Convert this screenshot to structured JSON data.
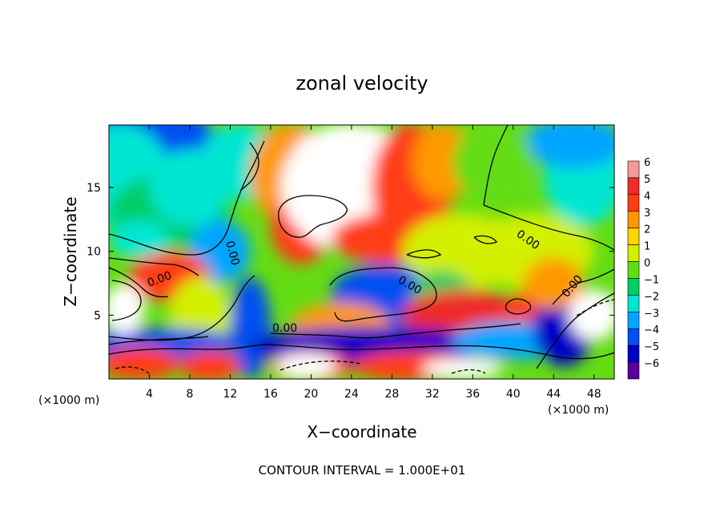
{
  "chart_data": {
    "type": "heatmap",
    "title": "zonal velocity",
    "xlabel": "X−coordinate",
    "ylabel": "Z−coordinate",
    "x_units_left": "(×1000 m)",
    "x_units_right": "(×1000 m)",
    "xlim": [
      0,
      50
    ],
    "ylim": [
      0,
      19.9
    ],
    "x_ticks": [
      4,
      8,
      12,
      16,
      20,
      24,
      28,
      32,
      36,
      40,
      44,
      48
    ],
    "x_tick_labels": [
      "4",
      "8",
      "12",
      "16",
      "20",
      "24",
      "28",
      "32",
      "36",
      "40",
      "44",
      "48"
    ],
    "y_ticks": [
      5,
      10,
      15
    ],
    "y_tick_labels": [
      "5",
      "10",
      "15"
    ],
    "colorbar": {
      "levels": [
        6,
        5,
        4,
        3,
        2,
        1,
        0,
        -1,
        -2,
        -3,
        -4,
        -5,
        -6
      ],
      "labels": [
        "6",
        "5",
        "4",
        "3",
        "2",
        "1",
        "0",
        "−1",
        "−2",
        "−3",
        "−4",
        "−5",
        "−6"
      ],
      "colors": [
        "#f49a9a",
        "#ee2b2b",
        "#ff3c14",
        "#ff9800",
        "#ffd700",
        "#d2f000",
        "#64dc14",
        "#00cd64",
        "#00e6d2",
        "#00a5ff",
        "#0050f0",
        "#0000c8",
        "#5a009b"
      ]
    },
    "contour_label": "0.00",
    "footer": "CONTOUR INTERVAL = 1.000E+01",
    "regions": [
      {
        "name": "upper-left negative",
        "x": 4,
        "z": 18,
        "value": -4
      },
      {
        "name": "left mid negative",
        "x": 10,
        "z": 10,
        "value": -3
      },
      {
        "name": "central positive jet",
        "x": 24,
        "z": 15,
        "value": 7
      },
      {
        "name": "central negative core",
        "x": 27,
        "z": 6.5,
        "value": -4
      },
      {
        "name": "lower positive band",
        "x": 34,
        "z": 5,
        "value": 5
      },
      {
        "name": "bottom negative band",
        "x": 26,
        "z": 2.5,
        "value": -5
      },
      {
        "name": "right negative",
        "x": 45,
        "z": 4,
        "value": -5
      },
      {
        "name": "upper-right negative",
        "x": 47,
        "z": 17,
        "value": -2
      },
      {
        "name": "left positive lobe",
        "x": 2,
        "z": 5,
        "value": 7
      },
      {
        "name": "right positive lobe",
        "x": 48,
        "z": 5,
        "value": 7
      }
    ]
  }
}
